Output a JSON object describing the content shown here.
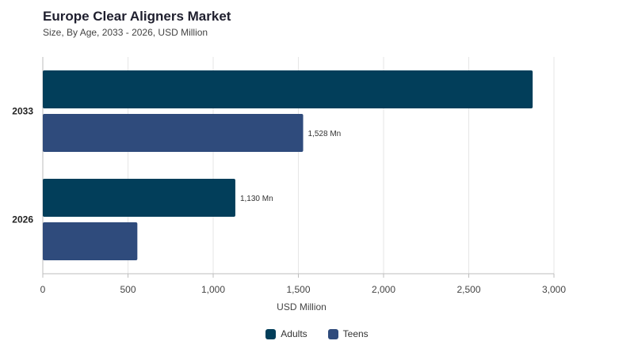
{
  "chart_data": {
    "type": "bar",
    "orientation": "horizontal",
    "title": "Europe Clear Aligners Market",
    "subtitle": "Size, By Age, 2033 - 2026, USD Million",
    "xlabel": "USD Million",
    "ylabel": "",
    "xlim": [
      0,
      3000
    ],
    "xticks": [
      0,
      500,
      1000,
      1500,
      2000,
      2500,
      3000
    ],
    "xtick_labels": [
      "0",
      "500",
      "1,000",
      "1,500",
      "2,000",
      "2,500",
      "3,000"
    ],
    "grid": "vertical",
    "legend_position": "bottom-center",
    "categories": [
      "2033",
      "2026"
    ],
    "series": [
      {
        "name": "Adults",
        "color": "#023e5a",
        "values": [
          2875,
          1130
        ],
        "labels": [
          "",
          "1,130 Mn"
        ]
      },
      {
        "name": "Teens",
        "color": "#2f4b7c",
        "values": [
          1528,
          555
        ],
        "labels": [
          "1,528 Mn",
          ""
        ]
      }
    ]
  }
}
